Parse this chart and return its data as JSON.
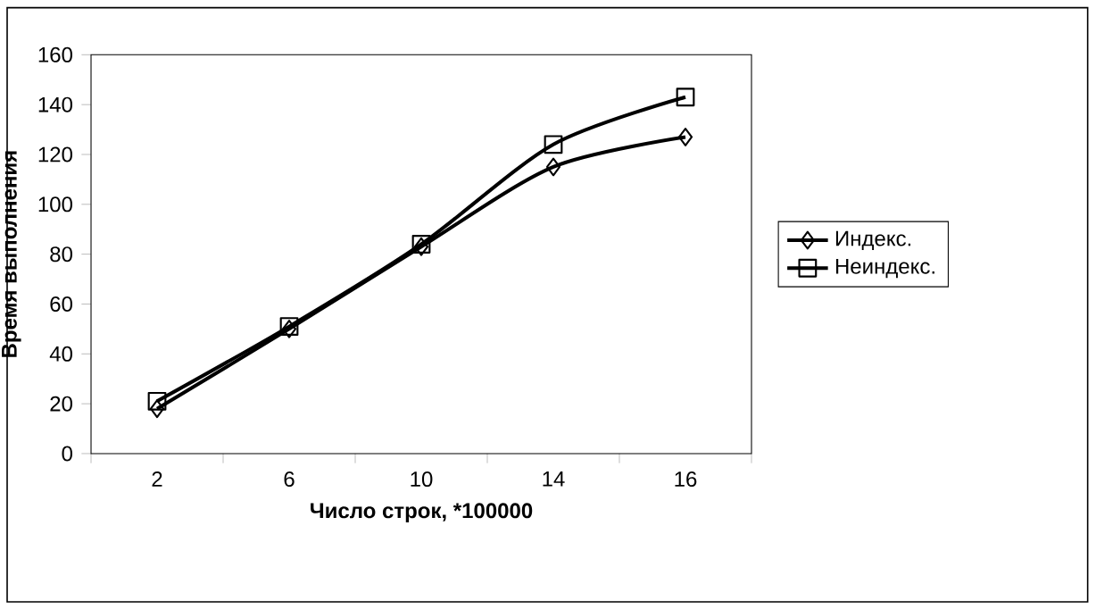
{
  "chart_data": {
    "type": "line",
    "xlabel": "Число строк, *100000",
    "ylabel": "Время выполнения",
    "categories": [
      "2",
      "6",
      "10",
      "14",
      "16"
    ],
    "series": [
      {
        "name": "Индекс.",
        "color": "#000000",
        "marker": "diamond",
        "values": [
          18,
          50,
          83,
          115,
          127
        ]
      },
      {
        "name": "Неиндекс.",
        "color": "#000000",
        "marker": "square",
        "values": [
          21,
          51,
          84,
          124,
          143
        ]
      }
    ],
    "ylim": [
      0,
      160
    ],
    "yticks": [
      0,
      20,
      40,
      60,
      80,
      100,
      120,
      140,
      160
    ],
    "grid": false,
    "legend": "right",
    "line_style": "solid"
  }
}
